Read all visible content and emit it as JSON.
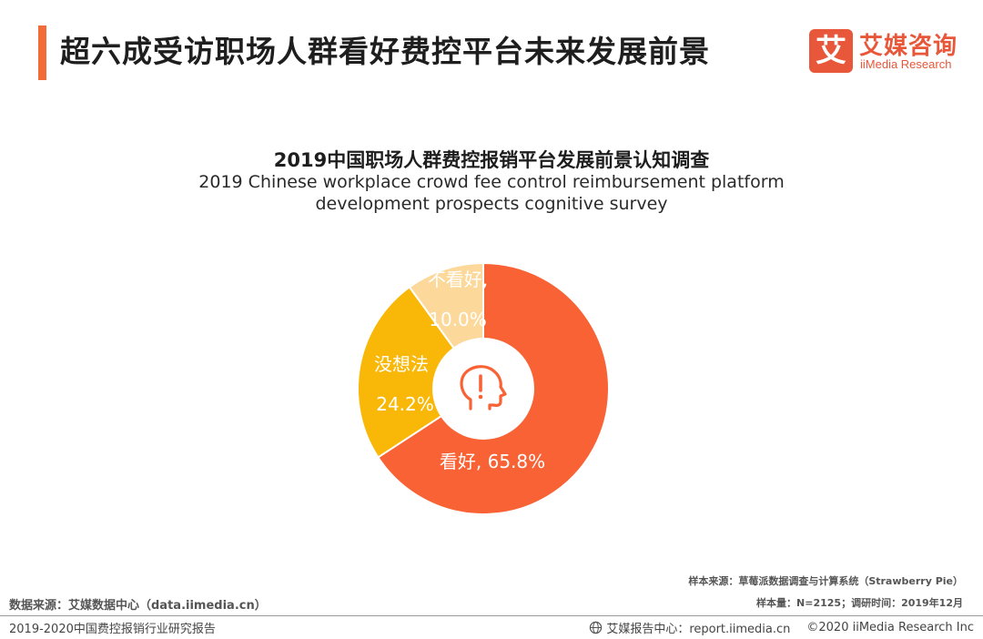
{
  "header": {
    "title": "超六成受访职场人群看好费控平台未来发展前景",
    "logo": {
      "mark": "艾",
      "name_cn": "艾媒咨询",
      "name_en": "iiMedia Research"
    }
  },
  "colors": {
    "accent": "#f26c3a",
    "slice_positive": "#f96234",
    "slice_neutral": "#f9b707",
    "slice_negative": "#fcd99a",
    "center_icon": "#f96234"
  },
  "chart_data": {
    "type": "pie",
    "variant": "donut",
    "title": "2019中国职场人群费控报销平台发展前景认知调查",
    "subtitle_line1": "2019 Chinese workplace crowd fee control reimbursement platform",
    "subtitle_line2": "development prospects cognitive survey",
    "slices": [
      {
        "name": "看好",
        "value": 65.8,
        "label": "看好, 65.8%"
      },
      {
        "name": "没想法",
        "value": 24.2,
        "label_name": "没想法",
        "label_value": "24.2%"
      },
      {
        "name": "不看好",
        "value": 10.0,
        "label_name": "不看好,",
        "label_value": "10.0%"
      }
    ],
    "center_icon": "head-exclamation-icon"
  },
  "footer": {
    "data_source": "数据来源：艾媒数据中心（data.iimedia.cn）",
    "sample_source": "样本来源：草莓派数据调查与计算系统（Strawberry Pie）",
    "sample_info": "样本量：N=2125；调研时间：2019年12月",
    "report_name": "2019-2020中国费控报销行业研究报告",
    "report_center": "艾媒报告中心：report.iimedia.cn",
    "copyright": "©2020  iiMedia Research  Inc"
  }
}
